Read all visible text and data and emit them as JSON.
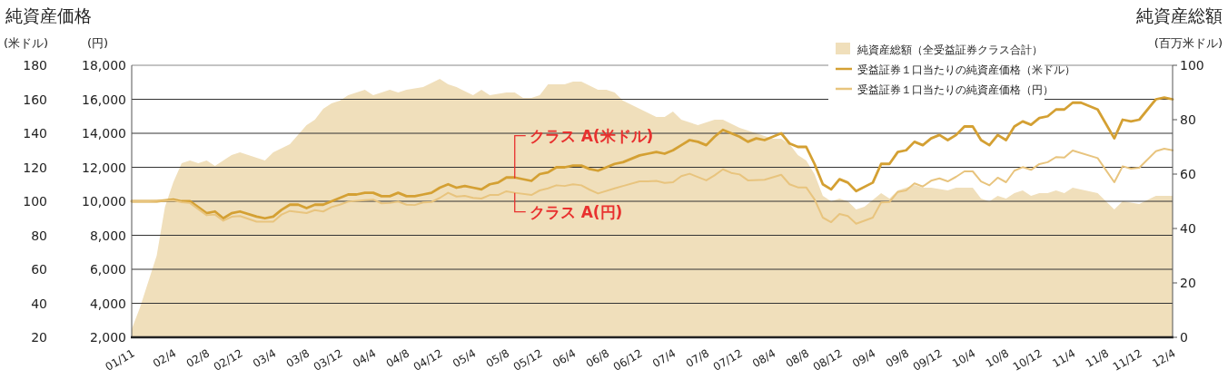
{
  "chart_data": {
    "type": "line",
    "title": "純資産価格",
    "ylabel": "(米ドル)",
    "y3label": "(円)",
    "y2label": "(百万米ドル)",
    "annotations": [
      {
        "text": "クラス A(米ドル)",
        "x": "2005-09",
        "y": 113.5
      },
      {
        "text": "クラス A(円)",
        "x": "2005-09",
        "y": 105
      },
      "純資産総額"
    ],
    "xlim": [
      "2001-11",
      "2012-04"
    ],
    "xticks": [
      {
        "value": "2001-11",
        "label": "01/11"
      },
      {
        "value": "2002-04",
        "label": "02/4"
      },
      {
        "value": "2002-08",
        "label": "02/8"
      },
      {
        "value": "2002-12",
        "label": "02/12"
      },
      {
        "value": "2003-04",
        "label": "03/4"
      },
      {
        "value": "2003-08",
        "label": "03/8"
      },
      {
        "value": "2003-12",
        "label": "03/12"
      },
      {
        "value": "2004-04",
        "label": "04/4"
      },
      {
        "value": "2004-08",
        "label": "04/8"
      },
      {
        "value": "2004-12",
        "label": "04/12"
      },
      {
        "value": "2005-04",
        "label": "05/4"
      },
      {
        "value": "2005-08",
        "label": "05/8"
      },
      {
        "value": "2005-12",
        "label": "05/12"
      },
      {
        "value": "2006-04",
        "label": "06/4"
      },
      {
        "value": "2006-08",
        "label": "06/8"
      },
      {
        "value": "2006-12",
        "label": "06/12"
      },
      {
        "value": "2007-04",
        "label": "07/4"
      },
      {
        "value": "2007-08",
        "label": "07/8"
      },
      {
        "value": "2007-12",
        "label": "07/12"
      },
      {
        "value": "2008-04",
        "label": "08/4"
      },
      {
        "value": "2008-08",
        "label": "08/8"
      },
      {
        "value": "2008-12",
        "label": "08/12"
      },
      {
        "value": "2009-04",
        "label": "09/4"
      },
      {
        "value": "2009-08",
        "label": "09/8"
      },
      {
        "value": "2009-12",
        "label": "09/12"
      },
      {
        "value": "2010-04",
        "label": "10/4"
      },
      {
        "value": "2010-08",
        "label": "10/8"
      },
      {
        "value": "2010-12",
        "label": "10/12"
      },
      {
        "value": "2011-04",
        "label": "11/4"
      },
      {
        "value": "2011-08",
        "label": "11/8"
      },
      {
        "value": "2011-12",
        "label": "11/12"
      },
      {
        "value": "2012-04",
        "label": "12/4"
      }
    ],
    "ylim": [
      20,
      180
    ],
    "yticks": [
      20,
      40,
      60,
      80,
      100,
      120,
      140,
      160,
      180
    ],
    "y3lim": [
      2000,
      18000
    ],
    "y3ticks": [
      {
        "value": 2000,
        "label": "2,000"
      },
      {
        "value": 4000,
        "label": "4,000"
      },
      {
        "value": 6000,
        "label": "6,000"
      },
      {
        "value": 8000,
        "label": "8,000"
      },
      {
        "value": 10000,
        "label": "10,000"
      },
      {
        "value": 12000,
        "label": "12,000"
      },
      {
        "value": 14000,
        "label": "14,000"
      },
      {
        "value": 16000,
        "label": "16,000"
      },
      {
        "value": 18000,
        "label": "18,000"
      }
    ],
    "y2lim": [
      0,
      100
    ],
    "y2ticks": [
      0,
      20,
      40,
      60,
      80,
      100
    ],
    "grid": "y",
    "legend": "top right",
    "series": [
      {
        "name": "純資産総額（全受益証券クラス合計）",
        "type": "area",
        "axis": "y2",
        "color": "#f0dfbb",
        "x": [
          "2001-11",
          "2001-12",
          "2002-02",
          "2002-03",
          "2002-04",
          "2002-05",
          "2002-06",
          "2002-07",
          "2002-08",
          "2002-09",
          "2002-10",
          "2002-11",
          "2002-12",
          "2003-02",
          "2003-03",
          "2003-04",
          "2003-06",
          "2003-08",
          "2003-09",
          "2003-10",
          "2003-11",
          "2003-12",
          "2004-01",
          "2004-03",
          "2004-04",
          "2004-05",
          "2004-06",
          "2004-07",
          "2004-08",
          "2004-10",
          "2004-12",
          "2005-01",
          "2005-02",
          "2005-04",
          "2005-05",
          "2005-06",
          "2005-08",
          "2005-09",
          "2005-10",
          "2005-11",
          "2005-12",
          "2006-01",
          "2006-03",
          "2006-04",
          "2006-05",
          "2006-07",
          "2006-08",
          "2006-09",
          "2006-10",
          "2006-12",
          "2007-02",
          "2007-03",
          "2007-04",
          "2007-05",
          "2007-07",
          "2007-09",
          "2007-10",
          "2007-12",
          "2008-01",
          "2008-04",
          "2008-05",
          "2008-06",
          "2008-07",
          "2008-08",
          "2008-09",
          "2008-10",
          "2008-11",
          "2008-12",
          "2009-01",
          "2009-02",
          "2009-03",
          "2009-05",
          "2009-06",
          "2009-07",
          "2009-09",
          "2009-10",
          "2009-11",
          "2010-01",
          "2010-02",
          "2010-04",
          "2010-05",
          "2010-06",
          "2010-07",
          "2010-08",
          "2010-09",
          "2010-10",
          "2010-11",
          "2010-12",
          "2011-01",
          "2011-02",
          "2011-03",
          "2011-04",
          "2011-07",
          "2011-09",
          "2011-10",
          "2011-12",
          "2012-02",
          "2012-04"
        ],
        "values": [
          3,
          11,
          30,
          48,
          57,
          64,
          65,
          64,
          65,
          63,
          65,
          67,
          68,
          66,
          65,
          68,
          71,
          78,
          80,
          84,
          86,
          87,
          89,
          91,
          89,
          90,
          91,
          90,
          91,
          92,
          95,
          93,
          92,
          89,
          91,
          89,
          90,
          90,
          88,
          88,
          89,
          93,
          93,
          94,
          94,
          91,
          91,
          90,
          87,
          84,
          81,
          81,
          83,
          80,
          78,
          80,
          80,
          77,
          76,
          73,
          73,
          71,
          67,
          65,
          60,
          52,
          50,
          51,
          50,
          47,
          48,
          53,
          51,
          54,
          56,
          55,
          55,
          54,
          55,
          55,
          51,
          50,
          52,
          51,
          53,
          54,
          52,
          53,
          53,
          54,
          53,
          55,
          53,
          47,
          50,
          49,
          52,
          52
        ]
      },
      {
        "name": "受益証券１口当たりの純資産価格（米ドル）",
        "axis": "y",
        "color": "#d4a033",
        "x": [
          "2001-11",
          "2002-01",
          "2002-02",
          "2002-04",
          "2002-05",
          "2002-06",
          "2002-08",
          "2002-09",
          "2002-10",
          "2002-11",
          "2002-12",
          "2003-02",
          "2003-03",
          "2003-04",
          "2003-05",
          "2003-06",
          "2003-07",
          "2003-08",
          "2003-09",
          "2003-10",
          "2003-11",
          "2003-12",
          "2004-01",
          "2004-02",
          "2004-03",
          "2004-04",
          "2004-05",
          "2004-06",
          "2004-07",
          "2004-08",
          "2004-09",
          "2004-10",
          "2004-11",
          "2004-12",
          "2005-01",
          "2005-02",
          "2005-03",
          "2005-04",
          "2005-05",
          "2005-06",
          "2005-07",
          "2005-08",
          "2005-09",
          "2005-11",
          "2005-12",
          "2006-01",
          "2006-02",
          "2006-03",
          "2006-04",
          "2006-05",
          "2006-06",
          "2006-07",
          "2006-09",
          "2006-10",
          "2006-12",
          "2007-01",
          "2007-02",
          "2007-03",
          "2007-04",
          "2007-05",
          "2007-06",
          "2007-07",
          "2007-08",
          "2007-09",
          "2007-10",
          "2007-11",
          "2007-12",
          "2008-01",
          "2008-02",
          "2008-03",
          "2008-05",
          "2008-06",
          "2008-07",
          "2008-08",
          "2008-09",
          "2008-10",
          "2008-11",
          "2008-12",
          "2009-01",
          "2009-02",
          "2009-04",
          "2009-05",
          "2009-06",
          "2009-07",
          "2009-08",
          "2009-09",
          "2009-10",
          "2009-11",
          "2009-12",
          "2010-01",
          "2010-02",
          "2010-03",
          "2010-04",
          "2010-05",
          "2010-06",
          "2010-07",
          "2010-08",
          "2010-09",
          "2010-10",
          "2010-11",
          "2010-12",
          "2011-01",
          "2011-02",
          "2011-03",
          "2011-04",
          "2011-05",
          "2011-07",
          "2011-09",
          "2011-10",
          "2011-11",
          "2011-12",
          "2012-02",
          "2012-03",
          "2012-04"
        ],
        "values": [
          100,
          100,
          100,
          101,
          100,
          100,
          93,
          94,
          90,
          93,
          94,
          91,
          90,
          91,
          95,
          98,
          98,
          96,
          98,
          98,
          100,
          102,
          104,
          104,
          105,
          105,
          103,
          103,
          105,
          103,
          103,
          104,
          105,
          108,
          110,
          108,
          109,
          108,
          107,
          110,
          111,
          114,
          114,
          112,
          116,
          117,
          120,
          120,
          121,
          121,
          119,
          118,
          122,
          123,
          127,
          128,
          129,
          128,
          130,
          133,
          136,
          135,
          133,
          138,
          142,
          140,
          138,
          135,
          137,
          136,
          140,
          134,
          132,
          132,
          122,
          110,
          107,
          113,
          111,
          106,
          111,
          122,
          122,
          129,
          130,
          135,
          133,
          137,
          139,
          136,
          139,
          144,
          144,
          136,
          133,
          139,
          136,
          144,
          147,
          145,
          149,
          150,
          154,
          154,
          158,
          158,
          154,
          137,
          148,
          147,
          148,
          160,
          161,
          160
        ]
      },
      {
        "name": "受益証券１口当たりの純資産価格（円）",
        "axis": "y3",
        "color": "#e8c47e",
        "x": [
          "2001-11",
          "2002-01",
          "2002-04",
          "2002-05",
          "2002-06",
          "2002-08",
          "2002-09",
          "2002-10",
          "2002-11",
          "2002-12",
          "2003-02",
          "2003-04",
          "2003-05",
          "2003-06",
          "2003-08",
          "2003-09",
          "2003-10",
          "2003-11",
          "2003-12",
          "2004-01",
          "2004-03",
          "2004-04",
          "2004-05",
          "2004-06",
          "2004-07",
          "2004-08",
          "2004-09",
          "2004-10",
          "2004-11",
          "2004-12",
          "2005-01",
          "2005-02",
          "2005-03",
          "2005-04",
          "2005-05",
          "2005-06",
          "2005-07",
          "2005-08",
          "2005-09",
          "2005-11",
          "2005-12",
          "2006-01",
          "2006-02",
          "2006-03",
          "2006-04",
          "2006-05",
          "2006-06",
          "2006-07",
          "2006-09",
          "2006-10",
          "2006-12",
          "2007-01",
          "2007-02",
          "2007-03",
          "2007-04",
          "2007-05",
          "2007-06",
          "2007-08",
          "2007-09",
          "2007-10",
          "2007-11",
          "2007-12",
          "2008-01",
          "2008-03",
          "2008-05",
          "2008-06",
          "2008-07",
          "2008-08",
          "2008-09",
          "2008-10",
          "2008-11",
          "2008-12",
          "2009-01",
          "2009-02",
          "2009-04",
          "2009-05",
          "2009-06",
          "2009-07",
          "2009-08",
          "2009-09",
          "2009-10",
          "2009-11",
          "2009-12",
          "2010-01",
          "2010-02",
          "2010-03",
          "2010-04",
          "2010-05",
          "2010-06",
          "2010-07",
          "2010-08",
          "2010-09",
          "2010-10",
          "2010-11",
          "2010-12",
          "2011-01",
          "2011-02",
          "2011-03",
          "2011-04",
          "2011-07",
          "2011-09",
          "2011-10",
          "2011-11",
          "2011-12",
          "2012-02",
          "2012-03",
          "2012-04"
        ],
        "values": [
          10000,
          10000,
          10050,
          9950,
          9900,
          9180,
          9220,
          8860,
          9090,
          9130,
          8800,
          8800,
          9220,
          9430,
          9310,
          9480,
          9400,
          9660,
          9800,
          9980,
          10070,
          10100,
          9880,
          9900,
          9980,
          9800,
          9780,
          9930,
          9960,
          10200,
          10500,
          10280,
          10320,
          10200,
          10160,
          10370,
          10370,
          10590,
          10500,
          10370,
          10640,
          10760,
          10940,
          10900,
          11000,
          10940,
          10680,
          10460,
          10760,
          10900,
          11170,
          11170,
          11200,
          11080,
          11120,
          11480,
          11620,
          11230,
          11530,
          11880,
          11670,
          11580,
          11230,
          11270,
          11560,
          11000,
          10820,
          10820,
          10110,
          9040,
          8770,
          9250,
          9130,
          8680,
          9040,
          9930,
          9960,
          10550,
          10640,
          11050,
          10870,
          11210,
          11350,
          11170,
          11440,
          11760,
          11760,
          11170,
          10940,
          11390,
          11120,
          11800,
          12010,
          11850,
          12190,
          12300,
          12600,
          12570,
          12990,
          12540,
          11120,
          12060,
          11920,
          11970,
          12950,
          13090,
          13000
        ]
      }
    ]
  }
}
